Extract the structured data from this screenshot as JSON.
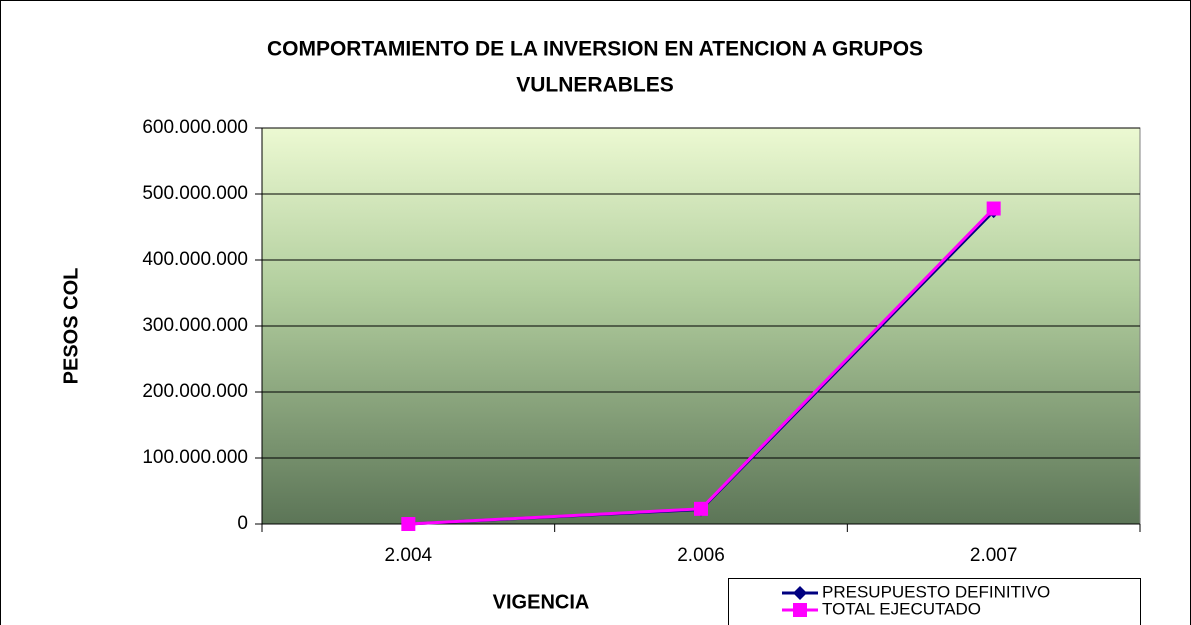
{
  "chart_data": {
    "type": "line",
    "title": [
      "COMPORTAMIENTO DE LA INVERSION EN ATENCION A GRUPOS",
      "VULNERABLES"
    ],
    "y_label": "PESOS COL",
    "x_label": "VIGENCIA",
    "categories": [
      "2.004",
      "2.006",
      "2.007"
    ],
    "series": [
      {
        "name": "PRESUPUESTO DEFINITIVO",
        "color": "#000080",
        "marker": "diamond",
        "values": [
          0,
          22000000,
          474000000
        ]
      },
      {
        "name": "TOTAL EJECUTADO",
        "color": "#ff00ff",
        "marker": "square",
        "values": [
          0,
          23000000,
          478000000
        ]
      }
    ],
    "ylim": [
      0,
      600000000
    ],
    "yticks": [
      {
        "value": 0,
        "label": "0"
      },
      {
        "value": 100000000,
        "label": "100.000.000"
      },
      {
        "value": 200000000,
        "label": "200.000.000"
      },
      {
        "value": 300000000,
        "label": "300.000.000"
      },
      {
        "value": 400000000,
        "label": "400.000.000"
      },
      {
        "value": 500000000,
        "label": "500.000.000"
      },
      {
        "value": 600000000,
        "label": "600.000.000"
      }
    ],
    "grid": true,
    "legend": "bottom-right"
  }
}
